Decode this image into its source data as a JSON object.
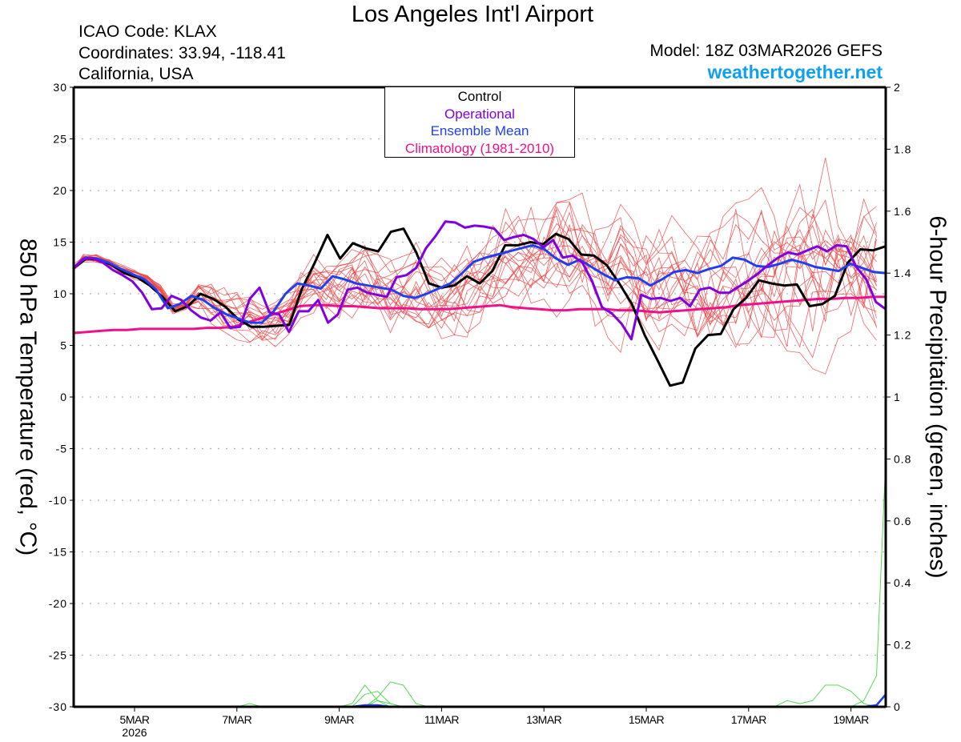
{
  "header": {
    "title": "Los Angeles Int'l Airport",
    "icao": "ICAO Code: KLAX",
    "coordinates": "Coordinates: 33.94, -118.41",
    "region": "California, USA",
    "model": "Model: 18Z 03MAR2026 GEFS",
    "site": "weathertogether.net"
  },
  "legend": [
    {
      "label": "Control",
      "color": "#000000"
    },
    {
      "label": "Operational",
      "color": "#8000e0"
    },
    {
      "label": "Ensemble Mean",
      "color": "#2040f0"
    },
    {
      "label": "Climatology (1981-2010)",
      "color": "#f0108a"
    }
  ],
  "chart_data": {
    "type": "line",
    "title": "Los Angeles Int'l Airport",
    "xlabel": "",
    "ylabel_left": "850 hPa Temperature (red, °C)",
    "ylabel_right": "6-hour Precipitation (green, inches)",
    "ylim_left": [
      -30,
      30
    ],
    "ylim_right": [
      0,
      2
    ],
    "yticks_left": [
      "30",
      "25",
      "20",
      "15",
      "10",
      "5",
      "0",
      "-5",
      "-10",
      "-15",
      "-20",
      "-25",
      "-30"
    ],
    "yticks_right": [
      "2",
      "1.8",
      "1.6",
      "1.4",
      "1.2",
      "1",
      "0.8",
      "0.6",
      "0.4",
      "0.2",
      "0"
    ],
    "xticks": [
      {
        "day": 5,
        "label": "5MAR",
        "sub": "2026"
      },
      {
        "day": 7,
        "label": "7MAR",
        "sub": ""
      },
      {
        "day": 9,
        "label": "9MAR",
        "sub": ""
      },
      {
        "day": 11,
        "label": "11MAR",
        "sub": ""
      },
      {
        "day": 13,
        "label": "13MAR",
        "sub": ""
      },
      {
        "day": 15,
        "label": "15MAR",
        "sub": ""
      },
      {
        "day": 17,
        "label": "17MAR",
        "sub": ""
      },
      {
        "day": 19,
        "label": "19MAR",
        "sub": ""
      }
    ],
    "x_start_day": 3.75,
    "x_step_days": 0.25,
    "grid": true,
    "legend_position": "top-center",
    "series": [
      {
        "name": "Control",
        "color": "#000000",
        "width": 3,
        "values": [
          12.5,
          13.4,
          13.3,
          12.8,
          12.0,
          11.6,
          10.8,
          9.7,
          8.3,
          8.8,
          10.0,
          9.5,
          8.7,
          7.5,
          6.8,
          6.8,
          6.9,
          7.0,
          10.5,
          13.0,
          15.7,
          13.4,
          14.9,
          14.4,
          14.1,
          16.0,
          16.3,
          14.0,
          11.0,
          10.6,
          10.8,
          11.7,
          11.0,
          12.2,
          14.7,
          14.7,
          15.0,
          14.8,
          15.8,
          15.3,
          13.8,
          13.7,
          12.8,
          11.0,
          9.0,
          6.0,
          3.6,
          1.1,
          1.4,
          4.7,
          6.0,
          6.1,
          8.5,
          9.6,
          11.3,
          11.0,
          10.8,
          10.9,
          8.8,
          9.0,
          9.8,
          13.0,
          14.3,
          14.2,
          14.6
        ]
      },
      {
        "name": "Operational",
        "color": "#8000e0",
        "width": 3,
        "values": [
          12.5,
          13.4,
          13.4,
          13.0,
          12.3,
          11.8,
          11.2,
          10.1,
          8.5,
          8.6,
          9.8,
          9.4,
          8.4,
          7.7,
          7.4,
          8.2,
          6.7,
          6.8,
          9.5,
          10.6,
          8.2,
          8.0,
          6.3,
          8.3,
          8.3,
          9.4,
          7.2,
          8.0,
          10.4,
          10.6,
          10.1,
          9.9,
          9.7,
          11.6,
          11.8,
          12.5,
          14.4,
          15.6,
          17.0,
          16.9,
          16.4,
          16.6,
          16.5,
          16.3,
          15.2,
          15.5,
          15.7,
          15.3,
          14.5,
          15.2,
          13.5,
          13.7,
          13.0,
          11.2,
          8.7,
          8.1,
          7.1,
          5.6,
          9.9,
          9.5,
          9.6,
          9.3,
          9.6,
          8.8,
          10.4,
          10.6,
          10.1,
          10.1,
          10.7,
          11.3,
          12.0,
          12.8,
          13.5,
          14.0,
          13.8,
          14.2,
          14.6,
          14.1,
          14.7,
          14.6,
          12.6,
          11.4,
          9.2,
          8.5
        ]
      },
      {
        "name": "Ensemble Mean",
        "color": "#2040f0",
        "width": 3,
        "values": [
          12.5,
          13.5,
          13.4,
          13.0,
          12.4,
          11.9,
          11.4,
          10.4,
          8.6,
          9.0,
          9.8,
          9.4,
          8.6,
          8.0,
          7.6,
          7.2,
          7.2,
          8.3,
          10.0,
          11.0,
          10.8,
          10.5,
          11.7,
          11.4,
          11.0,
          10.8,
          10.6,
          10.4,
          9.8,
          9.6,
          10.0,
          10.5,
          11.0,
          12.0,
          13.1,
          13.5,
          13.8,
          14.1,
          14.4,
          14.7,
          14.3,
          13.4,
          12.8,
          13.3,
          12.6,
          11.9,
          11.3,
          11.6,
          11.5,
          10.8,
          11.4,
          12.1,
          12.3,
          12.0,
          12.4,
          12.7,
          13.5,
          13.3,
          12.7,
          12.6,
          12.9,
          13.3,
          13.0,
          12.6,
          12.4,
          12.2,
          12.9,
          12.5,
          12.1,
          12.0
        ]
      },
      {
        "name": "Climatology (1981-2010)",
        "color": "#f0108a",
        "width": 3,
        "values": [
          6.2,
          6.3,
          6.4,
          6.5,
          6.5,
          6.6,
          6.6,
          6.6,
          6.6,
          6.6,
          6.7,
          6.7,
          6.8,
          7.2,
          7.6,
          8.0,
          8.4,
          8.8,
          8.9,
          8.9,
          8.8,
          8.8,
          8.7,
          8.6,
          8.6,
          8.6,
          8.5,
          8.5,
          8.5,
          8.6,
          8.7,
          8.8,
          8.9,
          8.7,
          8.6,
          8.5,
          8.4,
          8.4,
          8.5,
          8.5,
          8.5,
          8.4,
          8.4,
          8.3,
          8.2,
          8.3,
          8.4,
          8.5,
          8.6,
          8.7,
          8.9,
          9.0,
          9.1,
          9.2,
          9.3,
          9.4,
          9.5,
          9.5,
          9.6,
          9.6,
          9.7,
          9.7
        ]
      }
    ],
    "ensemble_members_color": "#f04848",
    "ensemble_members_note": "20 thin red ensemble member traces spanning roughly 0 to 19 °C",
    "precip_series": {
      "color": "#40d840",
      "note": "6-hour precipitation members; small amounts near 9–10 MAR (max ≈0.08 in) and a spike to ≈0.8 in at the end of the period",
      "mean_color": "#2040f0"
    }
  }
}
